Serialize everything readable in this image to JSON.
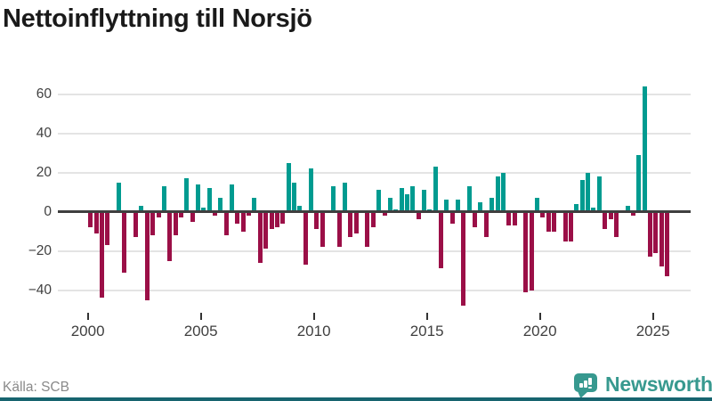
{
  "title": "Nettoinflyttning till Norsjö",
  "source": "Källa: SCB",
  "brand": {
    "name": "Newsworthy"
  },
  "colors": {
    "positive": "#009b90",
    "negative": "#9b0f47",
    "grid": "#e4e4e4",
    "zero_line": "#3f3f3f",
    "axis_text": "#404040",
    "source_text": "#8a8a8a",
    "brand_teal": "#37998f",
    "bottom_strip": "#17646f",
    "title_text": "#1a1a1a"
  },
  "chart_data": {
    "type": "bar",
    "title": "Nettoinflyttning till Norsjö",
    "frequency": "quarterly",
    "start_period": "2000-Q1",
    "end_period": "2025-Q3",
    "xlabel": "",
    "ylabel": "",
    "grid": true,
    "legend": "none",
    "y_ticks": [
      60,
      40,
      20,
      0,
      -20,
      -40
    ],
    "y_tick_labels": [
      "60",
      "40",
      "20",
      "0",
      "−20",
      "−40"
    ],
    "x_tick_years": [
      2000,
      2005,
      2010,
      2015,
      2020,
      2025
    ],
    "ylim": [
      -50,
      70
    ],
    "series": [
      {
        "name": "Nettoinflyttning",
        "values": [
          -8,
          -11,
          -44,
          -17,
          0,
          15,
          -31,
          0,
          -13,
          3,
          -45,
          -12,
          -3,
          13,
          -25,
          -12,
          -3,
          17,
          -5,
          14,
          2,
          12,
          -2,
          7,
          -12,
          14,
          -6,
          -10,
          -2,
          7,
          -26,
          -19,
          -9,
          -8,
          -6,
          25,
          15,
          3,
          -27,
          22,
          -9,
          -18,
          0,
          13,
          -18,
          15,
          -13,
          -11,
          0,
          -18,
          -8,
          11,
          -2,
          7,
          1,
          12,
          9,
          13,
          -4,
          11,
          1,
          23,
          -29,
          6,
          -6,
          6,
          -48,
          13,
          -8,
          5,
          -13,
          7,
          18,
          20,
          -7,
          -7,
          0,
          -41,
          -40,
          7,
          -3,
          -10,
          -10,
          0,
          -15,
          -15,
          4,
          16,
          20,
          2,
          18,
          -9,
          -4,
          -13,
          0,
          3,
          -2,
          29,
          64,
          -23,
          -21,
          -28,
          -33
        ]
      }
    ]
  }
}
